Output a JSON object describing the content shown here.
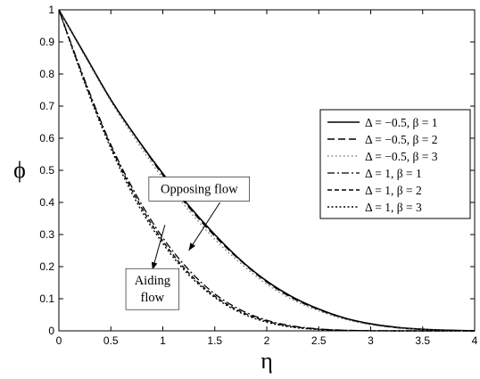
{
  "chart_data": {
    "type": "line",
    "xlabel": "η",
    "ylabel": "ϕ",
    "xlim": [
      0,
      4
    ],
    "ylim": [
      0,
      1
    ],
    "xticks": [
      "0",
      "0.5",
      "1",
      "1.5",
      "2",
      "2.5",
      "3",
      "3.5",
      "4"
    ],
    "yticks": [
      "0",
      "0.1",
      "0.2",
      "0.3",
      "0.4",
      "0.5",
      "0.6",
      "0.7",
      "0.8",
      "0.9",
      "1"
    ],
    "grid": false,
    "legend_position": "right",
    "x": [
      0,
      0.25,
      0.5,
      0.75,
      1,
      1.25,
      1.5,
      1.75,
      2,
      2.25,
      2.5,
      2.75,
      3,
      3.25,
      3.5,
      3.75,
      4
    ],
    "series": [
      {
        "name": "Δ = −0.5, β = 1",
        "style": "solid",
        "color": "#000000",
        "values": [
          1.0,
          0.86,
          0.72,
          0.6,
          0.49,
          0.39,
          0.3,
          0.22,
          0.155,
          0.105,
          0.068,
          0.04,
          0.022,
          0.011,
          0.005,
          0.002,
          0.0
        ]
      },
      {
        "name": "Δ = −0.5, β = 2",
        "style": "dashed",
        "color": "#000000",
        "values": [
          1.0,
          0.86,
          0.72,
          0.6,
          0.485,
          0.385,
          0.295,
          0.218,
          0.152,
          0.102,
          0.066,
          0.039,
          0.021,
          0.01,
          0.004,
          0.0015,
          0.0
        ]
      },
      {
        "name": "Δ = −0.5, β = 3",
        "style": "dotted",
        "color": "#666666",
        "values": [
          1.0,
          0.855,
          0.715,
          0.59,
          0.475,
          0.375,
          0.285,
          0.21,
          0.145,
          0.097,
          0.062,
          0.036,
          0.019,
          0.009,
          0.004,
          0.0012,
          0.0
        ]
      },
      {
        "name": "Δ = 1, β = 1",
        "style": "dashdot",
        "color": "#000000",
        "values": [
          1.0,
          0.78,
          0.58,
          0.42,
          0.29,
          0.19,
          0.115,
          0.065,
          0.033,
          0.015,
          0.006,
          0.002,
          0.0005,
          0.0,
          0.0,
          0.0,
          0.0
        ]
      },
      {
        "name": "Δ = 1, β = 2",
        "style": "dashed-marker",
        "color": "#000000",
        "values": [
          1.0,
          0.775,
          0.575,
          0.41,
          0.28,
          0.18,
          0.108,
          0.06,
          0.03,
          0.013,
          0.005,
          0.0015,
          0.0003,
          0.0,
          0.0,
          0.0,
          0.0
        ]
      },
      {
        "name": "Δ = 1, β = 3",
        "style": "dotted-marker",
        "color": "#000000",
        "values": [
          1.0,
          0.77,
          0.568,
          0.4,
          0.272,
          0.174,
          0.104,
          0.056,
          0.027,
          0.011,
          0.004,
          0.001,
          0.0002,
          0.0,
          0.0,
          0.0,
          0.0
        ]
      }
    ],
    "annotations": [
      {
        "text": "Opposing flow",
        "x": 1.35,
        "y": 0.442,
        "boxed": true,
        "arrow_from": [
          1.55,
          0.4
        ],
        "arrow_to": [
          1.25,
          0.25
        ]
      },
      {
        "text": "Aiding\nflow",
        "x": 0.9,
        "y": 0.13,
        "boxed": true,
        "arrow_from": [
          1.02,
          0.33
        ],
        "arrow_to": [
          0.9,
          0.19
        ]
      }
    ]
  }
}
